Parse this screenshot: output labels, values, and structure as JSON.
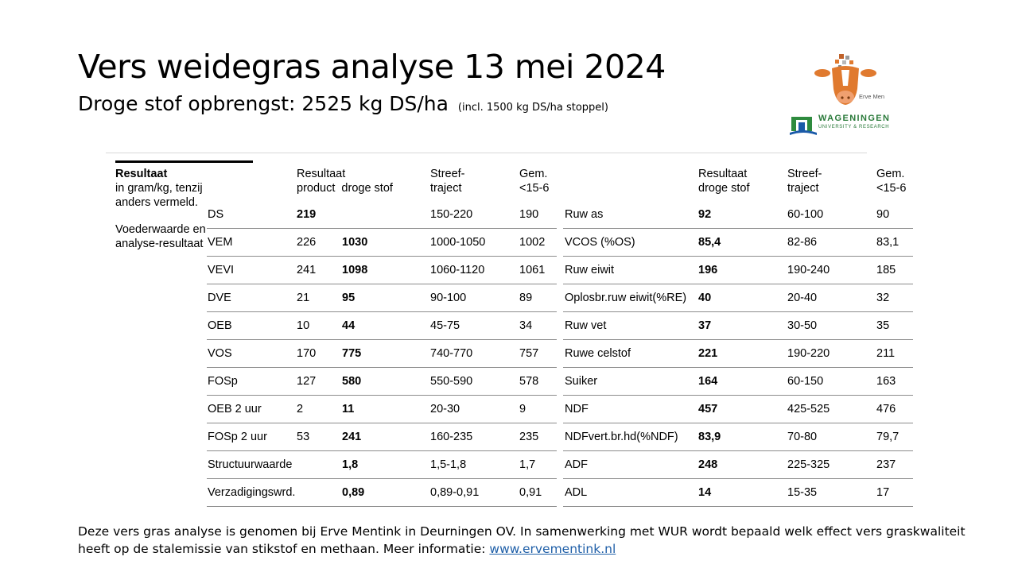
{
  "title": "Vers weidegras analyse 13 mei 2024",
  "subtitle": {
    "main": "Droge stof opbrengst: 2525 kg DS/ha",
    "note": "(incl. 1500 kg DS/ha stoppel)"
  },
  "logos": {
    "erve_mentink": "Erve Mentink",
    "wur_line1": "WAGENINGEN",
    "wur_line2": "UNIVERSITY & RESEARCH"
  },
  "legend": {
    "heading": "Resultaat",
    "units": "in gram/kg, tenzij anders vermeld.",
    "section": "Voederwaarde en analyse-resultaat"
  },
  "left_headers": {
    "result_1": "Resultaat",
    "result_2": "product  droge stof",
    "target_1": "Streef-",
    "target_2": "traject",
    "avg_1": "Gem.",
    "avg_2": "<15-6"
  },
  "right_headers": {
    "result_1": "Resultaat",
    "result_2": "droge stof",
    "target_1": "Streef-",
    "target_2": "traject",
    "avg_1": "Gem.",
    "avg_2": "<15-6"
  },
  "left_rows": [
    {
      "name": "DS",
      "product": "219",
      "dry": "",
      "target": "150-220",
      "avg": "190"
    },
    {
      "name": "VEM",
      "product": "226",
      "dry": "1030",
      "target": "1000-1050",
      "avg": "1002"
    },
    {
      "name": "VEVI",
      "product": "241",
      "dry": "1098",
      "target": "1060-1120",
      "avg": "1061"
    },
    {
      "name": "DVE",
      "product": "21",
      "dry": "95",
      "target": "90-100",
      "avg": "89"
    },
    {
      "name": "OEB",
      "product": "10",
      "dry": "44",
      "target": "45-75",
      "avg": "34"
    },
    {
      "name": "VOS",
      "product": "170",
      "dry": "775",
      "target": "740-770",
      "avg": "757"
    },
    {
      "name": "FOSp",
      "product": "127",
      "dry": "580",
      "target": "550-590",
      "avg": "578"
    },
    {
      "name": "OEB 2 uur",
      "product": "2",
      "dry": "11",
      "target": "20-30",
      "avg": "9"
    },
    {
      "name": "FOSp 2 uur",
      "product": "53",
      "dry": "241",
      "target": "160-235",
      "avg": "235"
    },
    {
      "name": "Structuurwaarde",
      "product": "",
      "dry": "1,8",
      "target": "1,5-1,8",
      "avg": "1,7"
    },
    {
      "name": "Verzadigingswrd.",
      "product": "",
      "dry": "0,89",
      "target": "0,89-0,91",
      "avg": "0,91"
    }
  ],
  "right_rows": [
    {
      "name": "Ruw as",
      "dry": "92",
      "target": "60-100",
      "avg": "90"
    },
    {
      "name": "VCOS (%OS)",
      "dry": "85,4",
      "target": "82-86",
      "avg": "83,1"
    },
    {
      "name": "Ruw eiwit",
      "dry": "196",
      "target": "190-240",
      "avg": "185"
    },
    {
      "name": "Oplosbr.ruw eiwit(%RE)",
      "dry": "40",
      "target": "20-40",
      "avg": "32"
    },
    {
      "name": "Ruw vet",
      "dry": "37",
      "target": "30-50",
      "avg": "35"
    },
    {
      "name": "Ruwe celstof",
      "dry": "221",
      "target": "190-220",
      "avg": "211"
    },
    {
      "name": "Suiker",
      "dry": "164",
      "target": "60-150",
      "avg": "163"
    },
    {
      "name": "NDF",
      "dry": "457",
      "target": "425-525",
      "avg": "476"
    },
    {
      "name": "NDFvert.br.hd(%NDF)",
      "dry": "83,9",
      "target": "70-80",
      "avg": "79,7"
    },
    {
      "name": "ADF",
      "dry": "248",
      "target": "225-325",
      "avg": "237"
    },
    {
      "name": "ADL",
      "dry": "14",
      "target": "15-35",
      "avg": "17"
    }
  ],
  "footer": {
    "text": "Deze vers gras analyse is genomen bij Erve Mentink in Deurningen OV. In samenwerking met WUR wordt bepaald welk effect vers graskwaliteit heeft op de stalemissie van stikstof en methaan. Meer informatie: ",
    "link": "www.ervementink.nl"
  }
}
